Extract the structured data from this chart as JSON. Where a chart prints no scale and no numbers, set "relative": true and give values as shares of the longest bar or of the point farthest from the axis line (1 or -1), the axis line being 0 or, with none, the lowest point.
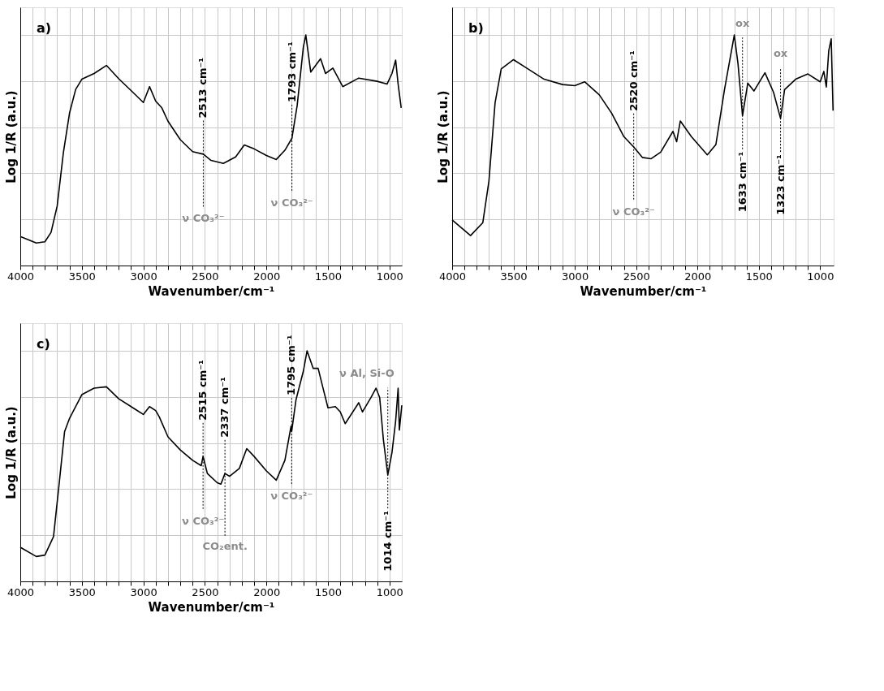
{
  "chart_data": [
    {
      "type": "line",
      "title": "a)",
      "xlabel": "Wavenumber/cm⁻¹",
      "ylabel": "Log 1/R (a.u.)",
      "relative": true,
      "grid": true,
      "xlim": [
        4000,
        900
      ],
      "xticks": [
        4000,
        {
          "value": 3900,
          "label": null
        },
        {
          "value": 3800,
          "label": null
        },
        {
          "value": 3700,
          "label": null
        },
        {
          "value": 3600,
          "label": null
        },
        3500,
        {
          "value": 3400,
          "label": null
        },
        {
          "value": 3300,
          "label": null
        },
        {
          "value": 3200,
          "label": null
        },
        {
          "value": 3100,
          "label": null
        },
        3000,
        {
          "value": 2900,
          "label": null
        },
        {
          "value": 2800,
          "label": null
        },
        {
          "value": 2700,
          "label": null
        },
        {
          "value": 2600,
          "label": null
        },
        2500,
        {
          "value": 2400,
          "label": null
        },
        {
          "value": 2300,
          "label": null
        },
        {
          "value": 2200,
          "label": null
        },
        {
          "value": 2100,
          "label": null
        },
        2000,
        {
          "value": 1900,
          "label": null
        },
        {
          "value": 1800,
          "label": null
        },
        {
          "value": 1700,
          "label": null
        },
        {
          "value": 1600,
          "label": null
        },
        1500,
        {
          "value": 1400,
          "label": null
        },
        {
          "value": 1300,
          "label": null
        },
        {
          "value": 1200,
          "label": null
        },
        {
          "value": 1100,
          "label": null
        },
        1000
      ],
      "series": [
        {
          "color": "#000000",
          "x": [
            4000,
            3870,
            3800,
            3750,
            3700,
            3650,
            3600,
            3550,
            3500,
            3400,
            3300,
            3200,
            3100,
            3000,
            2950,
            2900,
            2850,
            2800,
            2700,
            2600,
            2513,
            2450,
            2350,
            2250,
            2180,
            2100,
            2000,
            1920,
            1850,
            1793,
            1750,
            1700,
            1680,
            1640,
            1560,
            1520,
            1460,
            1380,
            1250,
            1100,
            1020,
            980,
            950,
            930,
            905
          ],
          "values": [
            0.126,
            0.098,
            0.103,
            0.144,
            0.259,
            0.489,
            0.661,
            0.764,
            0.808,
            0.833,
            0.868,
            0.81,
            0.759,
            0.707,
            0.776,
            0.713,
            0.684,
            0.626,
            0.546,
            0.494,
            0.483,
            0.456,
            0.443,
            0.471,
            0.523,
            0.506,
            0.477,
            0.46,
            0.5,
            0.552,
            0.695,
            0.948,
            1.0,
            0.839,
            0.897,
            0.833,
            0.856,
            0.776,
            0.813,
            0.799,
            0.787,
            0.833,
            0.891,
            0.787,
            0.684
          ]
        }
      ],
      "ref_lines": [
        {
          "axis": "x",
          "value": 2513,
          "label": "2513 cm⁻¹",
          "color": "#000000",
          "line_style": "dotted"
        },
        {
          "axis": "x",
          "value": 1793,
          "label": "1793 cm⁻¹",
          "color": "#000000",
          "line_style": "dotted"
        }
      ],
      "annotations": [
        "ν CO₃²⁻",
        "ν CO₃²⁻"
      ]
    },
    {
      "type": "line",
      "title": "b)",
      "xlabel": "Wavenumber/cm⁻¹",
      "ylabel": "Log 1/R (a.u.)",
      "relative": true,
      "grid": true,
      "xlim": [
        4000,
        890
      ],
      "xticks": [
        4000,
        {
          "value": 3900,
          "label": null
        },
        {
          "value": 3800,
          "label": null
        },
        {
          "value": 3700,
          "label": null
        },
        {
          "value": 3600,
          "label": null
        },
        3500,
        {
          "value": 3400,
          "label": null
        },
        {
          "value": 3300,
          "label": null
        },
        {
          "value": 3200,
          "label": null
        },
        {
          "value": 3100,
          "label": null
        },
        3000,
        {
          "value": 2900,
          "label": null
        },
        {
          "value": 2800,
          "label": null
        },
        {
          "value": 2700,
          "label": null
        },
        {
          "value": 2600,
          "label": null
        },
        2500,
        {
          "value": 2400,
          "label": null
        },
        {
          "value": 2300,
          "label": null
        },
        {
          "value": 2200,
          "label": null
        },
        {
          "value": 2100,
          "label": null
        },
        2000,
        {
          "value": 1900,
          "label": null
        },
        {
          "value": 1800,
          "label": null
        },
        {
          "value": 1700,
          "label": null
        },
        {
          "value": 1600,
          "label": null
        },
        1500,
        {
          "value": 1400,
          "label": null
        },
        {
          "value": 1300,
          "label": null
        },
        {
          "value": 1200,
          "label": null
        },
        {
          "value": 1100,
          "label": null
        },
        1000
      ],
      "series": [
        {
          "color": "#000000",
          "x": [
            4000,
            3850,
            3750,
            3700,
            3650,
            3600,
            3500,
            3400,
            3250,
            3100,
            3000,
            2920,
            2800,
            2700,
            2600,
            2520,
            2450,
            2380,
            2300,
            2200,
            2170,
            2140,
            2050,
            1920,
            1850,
            1780,
            1700,
            1670,
            1633,
            1590,
            1540,
            1450,
            1380,
            1323,
            1290,
            1200,
            1100,
            1000,
            970,
            950,
            930,
            910,
            895
          ],
          "values": [
            0.198,
            0.13,
            0.186,
            0.367,
            0.706,
            0.853,
            0.893,
            0.859,
            0.808,
            0.785,
            0.78,
            0.797,
            0.74,
            0.661,
            0.559,
            0.514,
            0.469,
            0.463,
            0.492,
            0.582,
            0.537,
            0.627,
            0.559,
            0.48,
            0.525,
            0.763,
            1.0,
            0.876,
            0.65,
            0.791,
            0.757,
            0.836,
            0.751,
            0.638,
            0.763,
            0.808,
            0.831,
            0.797,
            0.842,
            0.774,
            0.932,
            0.983,
            0.672
          ]
        }
      ],
      "ref_lines": [
        {
          "axis": "x",
          "value": 2520,
          "label": "2520 cm⁻¹",
          "color": "#000000",
          "line_style": "dotted"
        },
        {
          "axis": "x",
          "value": 1633,
          "label": "1633 cm⁻¹",
          "color": "#000000",
          "line_style": "dotted"
        },
        {
          "axis": "x",
          "value": 1323,
          "label": "1323 cm⁻¹",
          "color": "#000000",
          "line_style": "dotted"
        }
      ],
      "annotations": [
        "ν CO₃²⁻",
        "ox",
        "ox"
      ]
    },
    {
      "type": "line",
      "title": "c)",
      "xlabel": "Wavenumber/cm⁻¹",
      "ylabel": "Log 1/R (a.u.)",
      "relative": true,
      "grid": true,
      "xlim": [
        4000,
        900
      ],
      "xticks": [
        4000,
        {
          "value": 3900,
          "label": null
        },
        {
          "value": 3800,
          "label": null
        },
        {
          "value": 3700,
          "label": null
        },
        {
          "value": 3600,
          "label": null
        },
        3500,
        {
          "value": 3400,
          "label": null
        },
        {
          "value": 3300,
          "label": null
        },
        {
          "value": 3200,
          "label": null
        },
        {
          "value": 3100,
          "label": null
        },
        3000,
        {
          "value": 2900,
          "label": null
        },
        {
          "value": 2800,
          "label": null
        },
        {
          "value": 2700,
          "label": null
        },
        {
          "value": 2600,
          "label": null
        },
        2500,
        {
          "value": 2400,
          "label": null
        },
        {
          "value": 2300,
          "label": null
        },
        {
          "value": 2200,
          "label": null
        },
        {
          "value": 2100,
          "label": null
        },
        2000,
        {
          "value": 1900,
          "label": null
        },
        {
          "value": 1800,
          "label": null
        },
        {
          "value": 1700,
          "label": null
        },
        {
          "value": 1600,
          "label": null
        },
        1500,
        {
          "value": 1400,
          "label": null
        },
        {
          "value": 1300,
          "label": null
        },
        {
          "value": 1200,
          "label": null
        },
        {
          "value": 1100,
          "label": null
        },
        1000
      ],
      "series": [
        {
          "color": "#000000",
          "x": [
            4000,
            3870,
            3800,
            3730,
            3680,
            3640,
            3600,
            3500,
            3400,
            3300,
            3200,
            3100,
            3000,
            2950,
            2900,
            2870,
            2800,
            2700,
            2600,
            2530,
            2515,
            2480,
            2400,
            2370,
            2337,
            2300,
            2220,
            2160,
            2100,
            2000,
            1920,
            1850,
            1800,
            1795,
            1760,
            1700,
            1670,
            1620,
            1580,
            1540,
            1500,
            1440,
            1400,
            1360,
            1250,
            1220,
            1150,
            1110,
            1080,
            1050,
            1014,
            980,
            950,
            930,
            920,
            900
          ],
          "values": [
            0.148,
            0.108,
            0.114,
            0.194,
            0.445,
            0.65,
            0.707,
            0.81,
            0.838,
            0.844,
            0.792,
            0.758,
            0.724,
            0.758,
            0.741,
            0.713,
            0.627,
            0.57,
            0.525,
            0.502,
            0.542,
            0.468,
            0.428,
            0.422,
            0.468,
            0.456,
            0.49,
            0.576,
            0.542,
            0.479,
            0.439,
            0.525,
            0.673,
            0.65,
            0.787,
            0.912,
            1.0,
            0.924,
            0.924,
            0.838,
            0.753,
            0.758,
            0.735,
            0.684,
            0.775,
            0.735,
            0.798,
            0.838,
            0.798,
            0.616,
            0.462,
            0.559,
            0.696,
            0.838,
            0.656,
            0.764
          ]
        }
      ],
      "ref_lines": [
        {
          "axis": "x",
          "value": 2515,
          "label": "2515 cm⁻¹",
          "color": "#000000",
          "line_style": "dotted"
        },
        {
          "axis": "x",
          "value": 2337,
          "label": "2337 cm⁻¹",
          "color": "#000000",
          "line_style": "dotted"
        },
        {
          "axis": "x",
          "value": 1795,
          "label": "1795 cm⁻¹",
          "color": "#000000",
          "line_style": "dotted"
        },
        {
          "axis": "x",
          "value": 1014,
          "label": "1014 cm⁻¹",
          "color": "#000000",
          "line_style": "dotted"
        }
      ],
      "annotations": [
        "ν CO₃²⁻",
        "CO₂ent.",
        "ν CO₃²⁻",
        "ν Al, Si-O"
      ]
    }
  ]
}
